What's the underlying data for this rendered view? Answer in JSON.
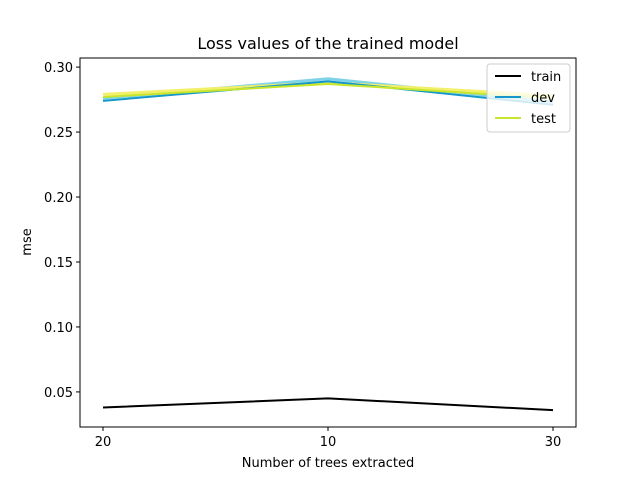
{
  "chart_data": {
    "type": "line",
    "title": "Loss values of the trained model",
    "xlabel": "Number of trees extracted",
    "ylabel": "mse",
    "categories": [
      "20",
      "10",
      "30"
    ],
    "ylim": [
      0.023,
      0.307
    ],
    "yticks": [
      "0.05",
      "0.10",
      "0.15",
      "0.20",
      "0.25",
      "0.30"
    ],
    "legend_position": "top-right",
    "grid": false,
    "series": [
      {
        "name": "train",
        "color": "#000000",
        "values": [
          0.038,
          0.045,
          0.036
        ],
        "shadow": []
      },
      {
        "name": "dev",
        "color": "#1597c9",
        "values": [
          0.274,
          0.289,
          0.271
        ],
        "shadow": [
          {
            "color": "#7fd3e8",
            "values": [
              0.276,
              0.291,
              0.273
            ]
          }
        ]
      },
      {
        "name": "test",
        "color": "#c8e62a",
        "values": [
          0.277,
          0.287,
          0.276
        ],
        "shadow": [
          {
            "color": "#f2f06a",
            "values": [
              0.279,
              0.288,
              0.278
            ]
          }
        ]
      }
    ]
  }
}
